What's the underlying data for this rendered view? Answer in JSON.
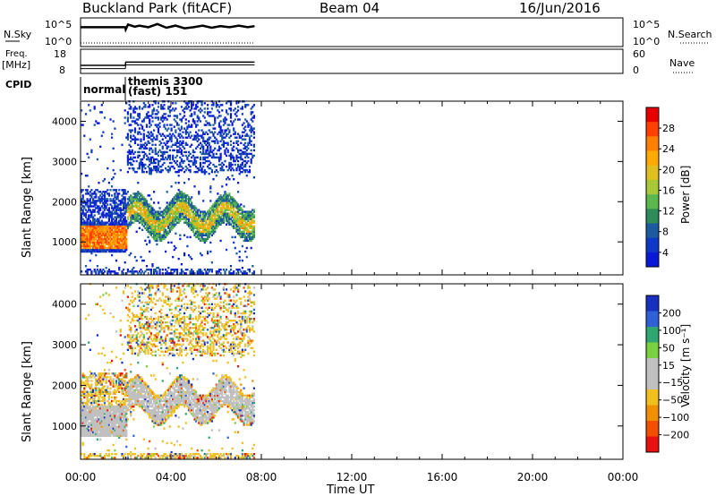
{
  "header": {
    "title": "Buckland Park (fitACF)",
    "beam": "Beam 04",
    "date": "16/Jun/2016"
  },
  "summary_panels": {
    "nsky_label": "N.Sky",
    "nsky_ticks": [
      "10^5",
      "10^0"
    ],
    "nsearch_label": "N.Search",
    "nsearch_ticks": [
      "10^5",
      "10^0"
    ],
    "freq_label_line1": "Freq.",
    "freq_label_line2": "[MHz]",
    "freq_ticks": [
      "18",
      "8"
    ],
    "nave_label": "Nave",
    "nave_ticks": [
      "60",
      "0"
    ],
    "cpid_label": "CPID",
    "cpid_entries": [
      {
        "line1": "normal",
        "line2": "",
        "start_hour": 0
      },
      {
        "line1": "themis 3300",
        "line2": "(fast) 151",
        "start_hour": 2.0
      }
    ],
    "nsky_profile": [
      [
        0,
        3.6
      ],
      [
        1.98,
        3.6
      ],
      [
        2.0,
        3.2
      ],
      [
        2.1,
        4.1
      ],
      [
        2.4,
        3.7
      ],
      [
        2.6,
        3.9
      ],
      [
        3.0,
        3.6
      ],
      [
        3.4,
        4.2
      ],
      [
        3.8,
        3.5
      ],
      [
        4.2,
        3.9
      ],
      [
        4.6,
        3.4
      ],
      [
        5.0,
        3.6
      ],
      [
        5.4,
        3.9
      ],
      [
        5.8,
        3.5
      ],
      [
        6.2,
        3.8
      ],
      [
        6.6,
        3.6
      ],
      [
        7.0,
        3.9
      ],
      [
        7.4,
        3.6
      ],
      [
        7.7,
        3.8
      ]
    ],
    "nave_profile": [
      [
        0,
        20
      ],
      [
        1.98,
        20
      ],
      [
        2.0,
        28
      ],
      [
        7.7,
        28
      ]
    ],
    "freq_profile": [
      [
        0,
        10.0
      ],
      [
        1.98,
        10.0
      ],
      [
        2.0,
        11.5
      ],
      [
        7.7,
        11.5
      ]
    ]
  },
  "chart_data": [
    {
      "type": "heatmap",
      "name": "power",
      "ylabel": "Slant Range [km]",
      "xlabel": "Time UT",
      "x_range_hours": [
        0,
        24
      ],
      "x_ticks": [
        "00:00",
        "04:00",
        "08:00",
        "12:00",
        "16:00",
        "20:00",
        "00:00"
      ],
      "ylim": [
        180,
        4500
      ],
      "y_ticks": [
        1000,
        2000,
        3000,
        4000
      ],
      "colorbar_label": "Power [dB]",
      "colorbar_ticks": [
        "28",
        "24",
        "20",
        "16",
        "12",
        "8",
        "4"
      ],
      "colorbar_colors": [
        "#e80000",
        "#ff4000",
        "#ff8000",
        "#ffaa00",
        "#e0c020",
        "#a8c838",
        "#5cb84c",
        "#2e8c5a",
        "#1e5aa0",
        "#1038c8",
        "#0a18d8"
      ],
      "data_extent_hours": [
        0,
        7.7
      ]
    },
    {
      "type": "heatmap",
      "name": "velocity",
      "ylabel": "Slant Range [km]",
      "xlabel": "Time UT",
      "x_range_hours": [
        0,
        24
      ],
      "x_ticks": [
        "00:00",
        "04:00",
        "08:00",
        "12:00",
        "16:00",
        "20:00",
        "00:00"
      ],
      "ylim": [
        180,
        4500
      ],
      "y_ticks": [
        1000,
        2000,
        3000,
        4000
      ],
      "colorbar_label": "Velocity [m s⁻¹]",
      "colorbar_ticks": [
        "200",
        "100",
        "50",
        "15",
        "−15",
        "−50",
        "−100",
        "−200"
      ],
      "colorbar_colors": [
        "#1830c0",
        "#3060d8",
        "#2ea870",
        "#7ad040",
        "#c0c0c0",
        "#c0c0c0",
        "#f0c020",
        "#f09000",
        "#f05000",
        "#e81010"
      ],
      "data_extent_hours": [
        0,
        7.7
      ]
    }
  ]
}
